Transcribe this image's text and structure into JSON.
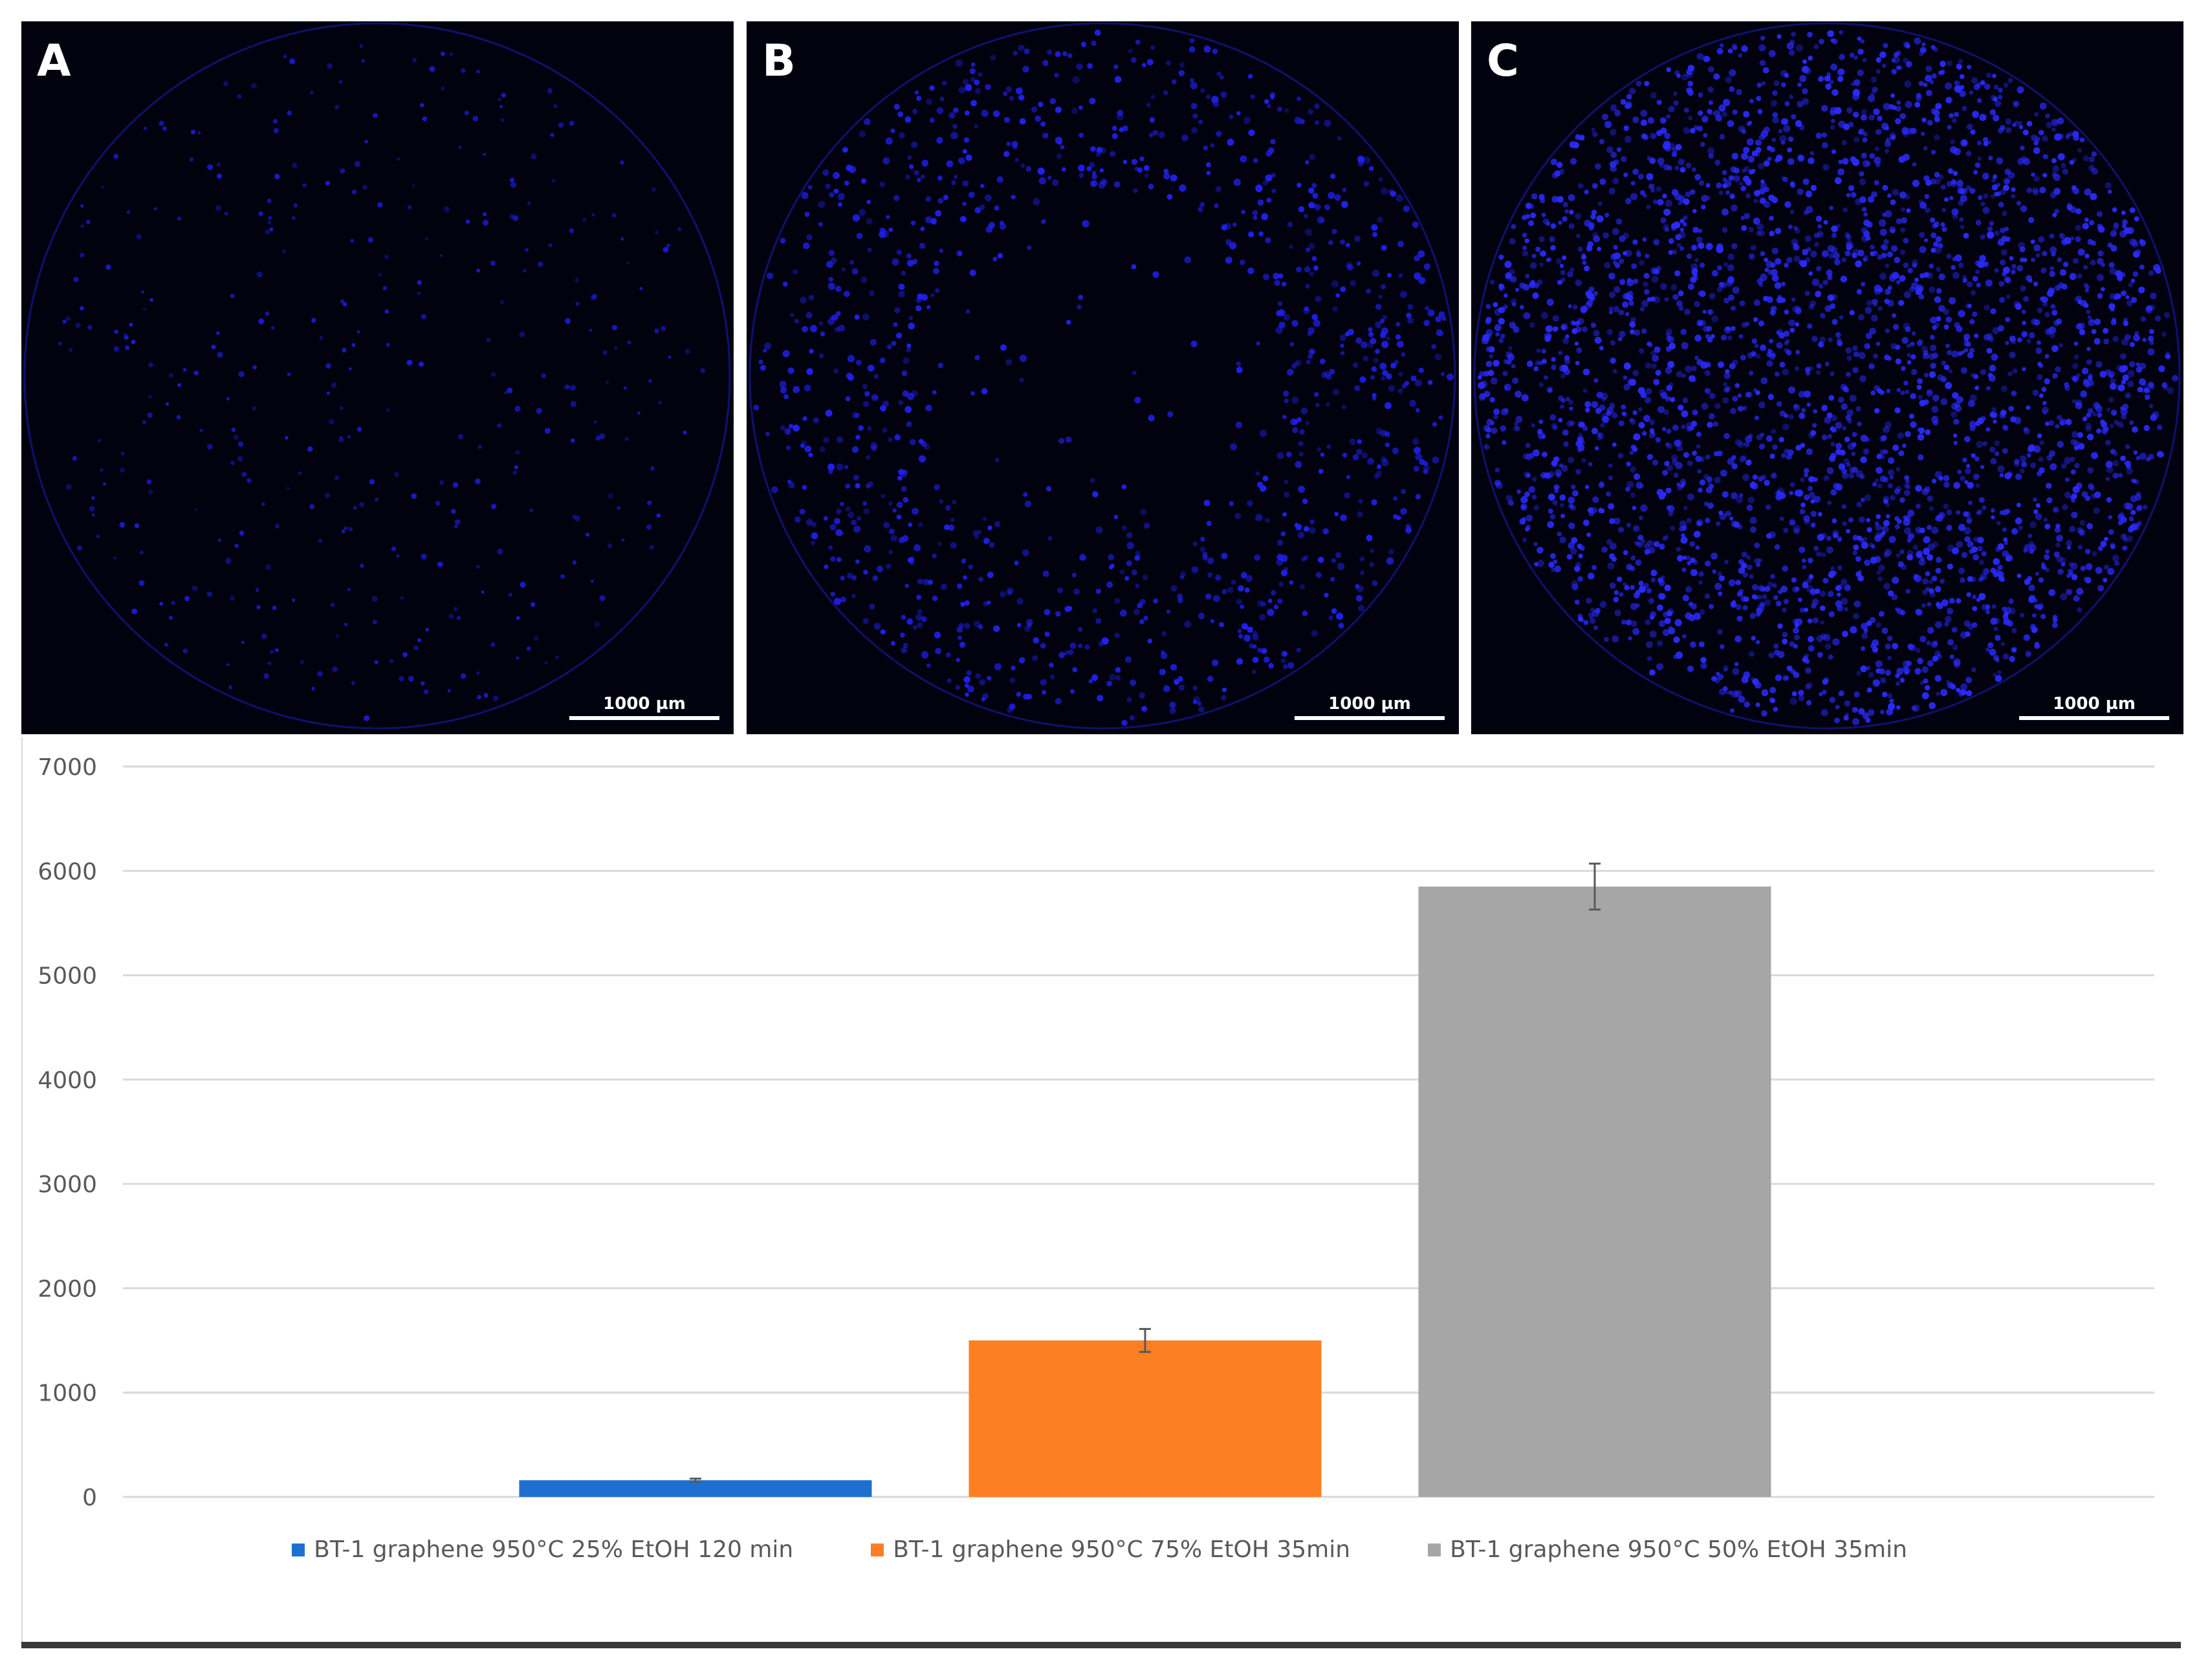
{
  "panels": [
    {
      "letter": "A",
      "scalebar": "1000 µm",
      "density": 0.12,
      "color": "#1a1ad6"
    },
    {
      "letter": "B",
      "scalebar": "1000 µm",
      "density": 0.45,
      "color": "#2020f0"
    },
    {
      "letter": "C",
      "scalebar": "1000 µm",
      "density": 1.0,
      "color": "#2a2aff"
    }
  ],
  "chart_data": {
    "type": "bar",
    "title": "",
    "xlabel": "",
    "ylabel": "",
    "ylim": [
      0,
      7000
    ],
    "yticks": [
      0,
      1000,
      2000,
      3000,
      4000,
      5000,
      6000,
      7000
    ],
    "grid": true,
    "legend_position": "bottom",
    "series": [
      {
        "name": "BT-1 graphene 950°C 25% EtOH 120 min",
        "value": 160,
        "error": 15,
        "color": "#1f6fd0"
      },
      {
        "name": "BT-1 graphene 950°C 75% EtOH 35min",
        "value": 1500,
        "error": 110,
        "color": "#fd7f23"
      },
      {
        "name": "BT-1 graphene 950°C 50% EtOH 35min",
        "value": 5850,
        "error": 220,
        "color": "#a6a6a6"
      }
    ]
  }
}
